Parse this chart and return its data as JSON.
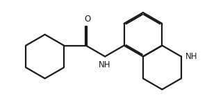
{
  "background_color": "#ffffff",
  "line_color": "#1a1a1a",
  "line_width": 1.6,
  "figsize": [
    2.98,
    1.47
  ],
  "dpi": 100,
  "O_label": "O",
  "NH_amide_label": "NH",
  "NH_ring_label": "NH"
}
